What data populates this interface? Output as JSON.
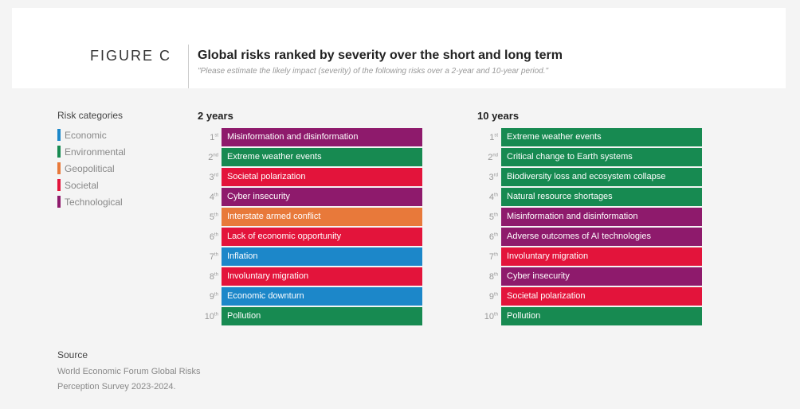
{
  "header": {
    "figure_label": "FIGURE C",
    "title": "Global risks ranked by severity over the short and long term",
    "subtitle": "\"Please estimate the likely impact (severity) of the following risks over a 2-year and 10-year period.\""
  },
  "chart_data": {
    "type": "table",
    "legend_title": "Risk categories",
    "categories": [
      {
        "name": "Economic",
        "color": "#1c87c9"
      },
      {
        "name": "Environmental",
        "color": "#178a51"
      },
      {
        "name": "Geopolitical",
        "color": "#e8793a"
      },
      {
        "name": "Societal",
        "color": "#e3143b"
      },
      {
        "name": "Technological",
        "color": "#8e1a6c"
      }
    ],
    "ranks": [
      [
        "1",
        "st"
      ],
      [
        "2",
        "nd"
      ],
      [
        "3",
        "rd"
      ],
      [
        "4",
        "th"
      ],
      [
        "5",
        "th"
      ],
      [
        "6",
        "th"
      ],
      [
        "7",
        "th"
      ],
      [
        "8",
        "th"
      ],
      [
        "9",
        "th"
      ],
      [
        "10",
        "th"
      ]
    ],
    "columns": [
      {
        "title": "2 years",
        "items": [
          {
            "label": "Misinformation and disinformation",
            "category": "Technological"
          },
          {
            "label": "Extreme weather events",
            "category": "Environmental"
          },
          {
            "label": "Societal polarization",
            "category": "Societal"
          },
          {
            "label": "Cyber insecurity",
            "category": "Technological"
          },
          {
            "label": "Interstate armed conflict",
            "category": "Geopolitical"
          },
          {
            "label": "Lack of economic opportunity",
            "category": "Societal"
          },
          {
            "label": "Inflation",
            "category": "Economic"
          },
          {
            "label": "Involuntary migration",
            "category": "Societal"
          },
          {
            "label": "Economic downturn",
            "category": "Economic"
          },
          {
            "label": "Pollution",
            "category": "Environmental"
          }
        ]
      },
      {
        "title": "10 years",
        "items": [
          {
            "label": "Extreme weather events",
            "category": "Environmental"
          },
          {
            "label": "Critical change to Earth systems",
            "category": "Environmental"
          },
          {
            "label": "Biodiversity loss and ecosystem collapse",
            "category": "Environmental"
          },
          {
            "label": "Natural resource shortages",
            "category": "Environmental"
          },
          {
            "label": "Misinformation and disinformation",
            "category": "Technological"
          },
          {
            "label": "Adverse outcomes of AI technologies",
            "category": "Technological"
          },
          {
            "label": "Involuntary migration",
            "category": "Societal"
          },
          {
            "label": "Cyber insecurity",
            "category": "Technological"
          },
          {
            "label": "Societal polarization",
            "category": "Societal"
          },
          {
            "label": "Pollution",
            "category": "Environmental"
          }
        ]
      }
    ]
  },
  "source": {
    "label": "Source",
    "text": "World Economic Forum Global Risks Perception Survey 2023-2024."
  }
}
